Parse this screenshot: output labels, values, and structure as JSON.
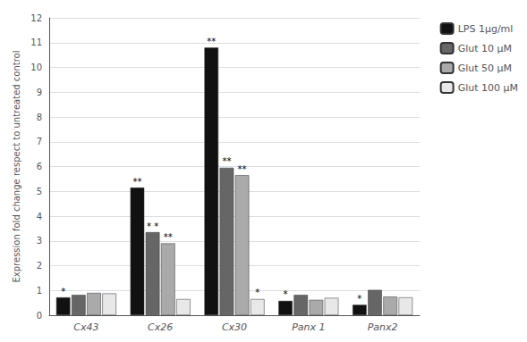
{
  "chart_data": {
    "type": "bar",
    "ylabel": "Expression fold change respect to untreated control",
    "categories": [
      "Cx43",
      "Cx26",
      "Cx30",
      "Panx 1",
      "Panx2"
    ],
    "series": [
      {
        "name": "LPS 1μg/ml",
        "color": "#111111",
        "values": [
          0.72,
          5.15,
          10.8,
          0.58,
          0.42
        ]
      },
      {
        "name": "Glut 10 μM",
        "color": "#666666",
        "values": [
          0.82,
          3.35,
          5.95,
          0.82,
          1.02
        ]
      },
      {
        "name": "Glut 50 μM",
        "color": "#aaaaaa",
        "values": [
          0.9,
          2.9,
          5.65,
          0.62,
          0.75
        ]
      },
      {
        "name": "Glut 100 μM",
        "color": "#e8e8e8",
        "values": [
          0.88,
          0.65,
          0.65,
          0.7,
          0.72
        ]
      }
    ],
    "annotations": [
      {
        "category": "Cx43",
        "series": "LPS 1μg/ml",
        "text": "*"
      },
      {
        "category": "Cx26",
        "series": "LPS 1μg/ml",
        "text": "**"
      },
      {
        "category": "Cx26",
        "series": "Glut 10 μM",
        "text": "* *"
      },
      {
        "category": "Cx26",
        "series": "Glut 50 μM",
        "text": "**"
      },
      {
        "category": "Cx30",
        "series": "LPS 1μg/ml",
        "text": "**"
      },
      {
        "category": "Cx30",
        "series": "Glut 10 μM",
        "text": "**"
      },
      {
        "category": "Cx30",
        "series": "Glut 50 μM",
        "text": "**"
      },
      {
        "category": "Cx30",
        "series": "Glut 100 μM",
        "text": "*"
      },
      {
        "category": "Panx 1",
        "series": "LPS 1μg/ml",
        "text": "*"
      },
      {
        "category": "Panx2",
        "series": "LPS 1μg/ml",
        "text": "*"
      }
    ],
    "ylim": [
      0,
      12
    ],
    "yticks": [
      0,
      1,
      2,
      3,
      4,
      5,
      6,
      7,
      8,
      9,
      10,
      11,
      12
    ],
    "grid": true,
    "legend": "right"
  }
}
